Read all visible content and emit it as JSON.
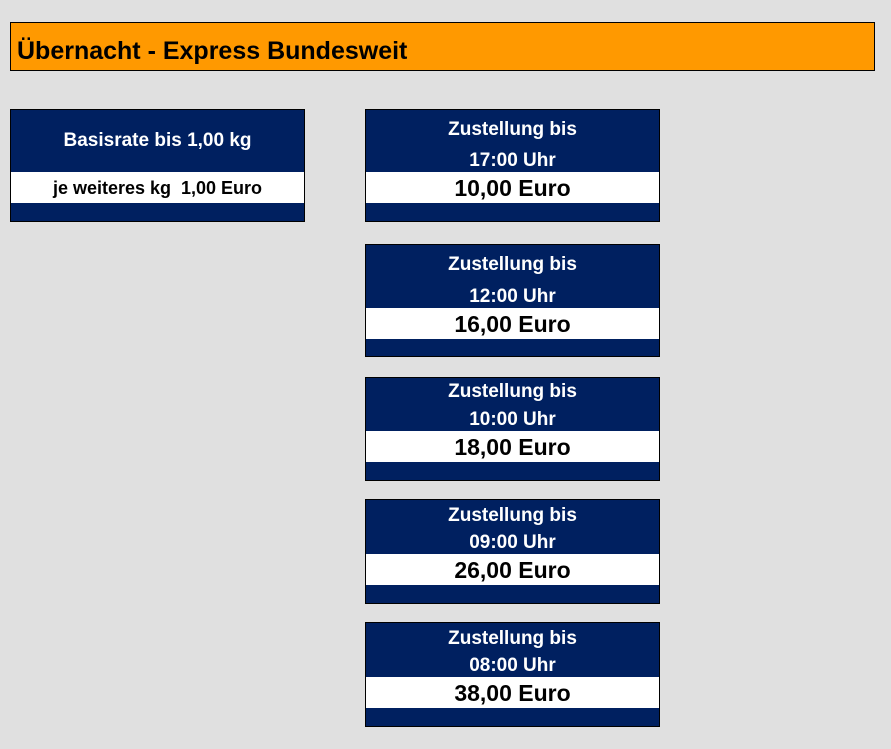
{
  "header": {
    "title": "Übernacht - Express Bundesweit"
  },
  "base": {
    "title": "Basisrate bis 1,00 kg",
    "extra": "je weiteres kg  1,00 Euro"
  },
  "delivery": [
    {
      "label": "Zustellung bis",
      "time": "17:00 Uhr",
      "price": "10,00 Euro"
    },
    {
      "label": "Zustellung bis",
      "time": "12:00 Uhr",
      "price": "16,00 Euro"
    },
    {
      "label": "Zustellung bis",
      "time": "10:00 Uhr",
      "price": "18,00 Euro"
    },
    {
      "label": "Zustellung bis",
      "time": "09:00 Uhr",
      "price": "26,00 Euro"
    },
    {
      "label": "Zustellung bis",
      "time": "08:00 Uhr",
      "price": "38,00 Euro"
    }
  ]
}
